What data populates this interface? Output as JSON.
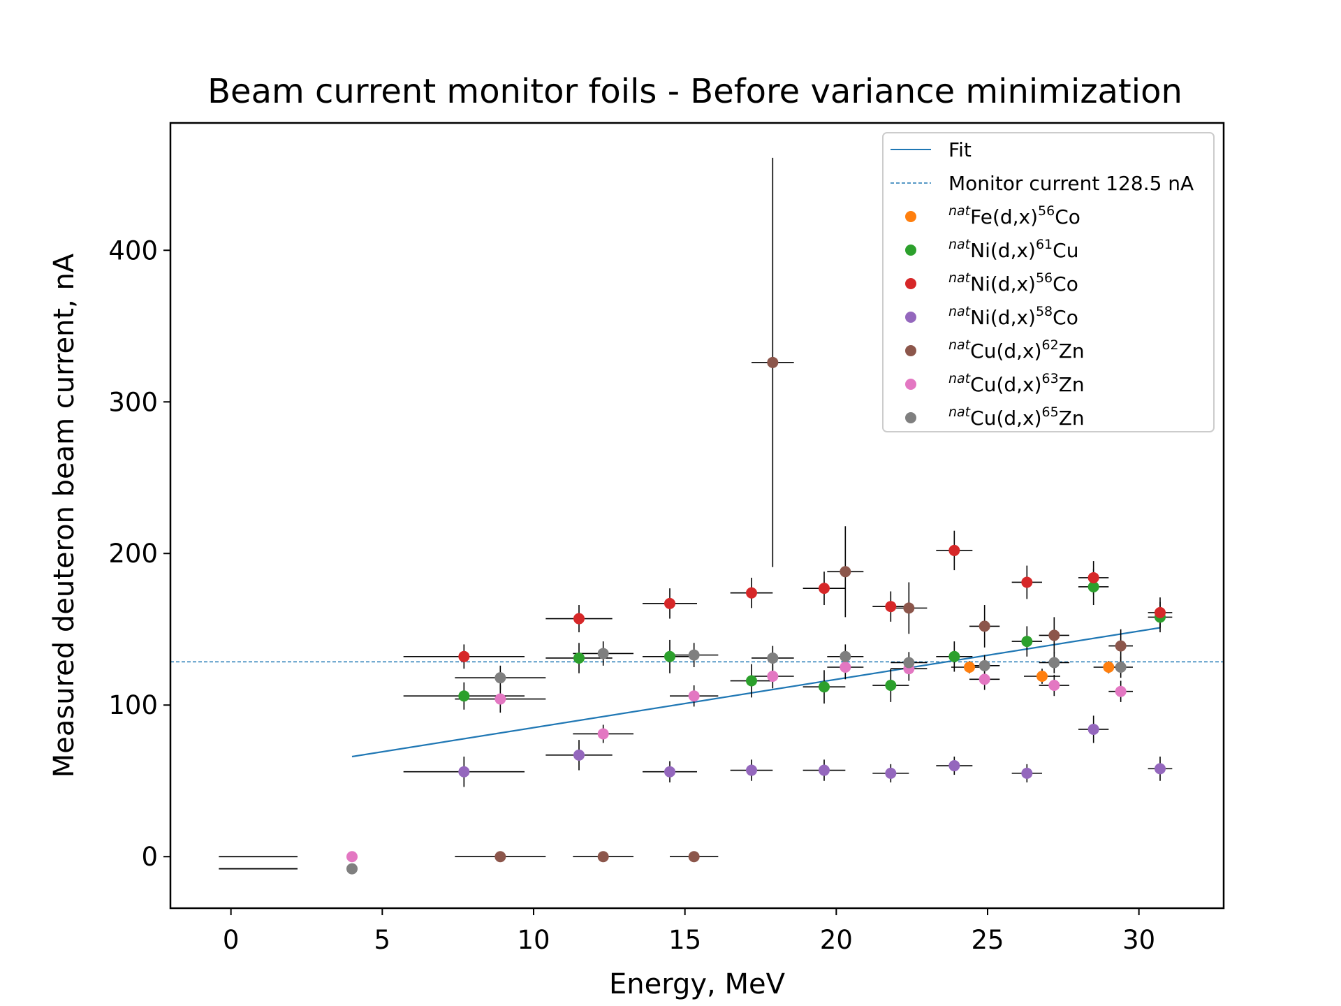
{
  "chart_data": {
    "type": "scatter",
    "title": "Beam current monitor foils - Before variance minimization",
    "xlabel": "Energy, MeV",
    "ylabel": "Measured deuteron beam current, nA",
    "xlim": [
      -2,
      32.8
    ],
    "ylim": [
      -34,
      484
    ],
    "xticks": [
      0,
      5,
      10,
      15,
      20,
      25,
      30
    ],
    "xtick_labels": [
      "0",
      "5",
      "10",
      "15",
      "20",
      "25",
      "30"
    ],
    "yticks": [
      0,
      100,
      200,
      300,
      400
    ],
    "ytick_labels": [
      "0",
      "100",
      "200",
      "300",
      "400"
    ],
    "grid": false,
    "legend_position": "top-right",
    "legend": [
      {
        "kind": "line",
        "label": "Fit",
        "color": "#1f77b4"
      },
      {
        "kind": "dashed",
        "label": "Monitor current 128.5 nA",
        "color": "#1f77b4"
      },
      {
        "kind": "marker",
        "pre": "nat",
        "mid": "Fe(d,x)",
        "sup": "56",
        "post": "Co",
        "color": "#ff7f0e"
      },
      {
        "kind": "marker",
        "pre": "nat",
        "mid": "Ni(d,x)",
        "sup": "61",
        "post": "Cu",
        "color": "#2ca02c"
      },
      {
        "kind": "marker",
        "pre": "nat",
        "mid": "Ni(d,x)",
        "sup": "56",
        "post": "Co",
        "color": "#d62728"
      },
      {
        "kind": "marker",
        "pre": "nat",
        "mid": "Ni(d,x)",
        "sup": "58",
        "post": "Co",
        "color": "#9467bd"
      },
      {
        "kind": "marker",
        "pre": "nat",
        "mid": "Cu(d,x)",
        "sup": "62",
        "post": "Zn",
        "color": "#8c564b"
      },
      {
        "kind": "marker",
        "pre": "nat",
        "mid": "Cu(d,x)",
        "sup": "63",
        "post": "Zn",
        "color": "#e377c2"
      },
      {
        "kind": "marker",
        "pre": "nat",
        "mid": "Cu(d,x)",
        "sup": "65",
        "post": "Zn",
        "color": "#7f7f7f"
      }
    ],
    "fit": {
      "x": [
        4.0,
        30.7
      ],
      "y": [
        66,
        151
      ],
      "color": "#1f77b4"
    },
    "monitor_current": {
      "y": 128.5,
      "color": "#1f77b4"
    },
    "errorbar_color": "#000000",
    "orphan_bars": [
      {
        "y": 0,
        "x0": -0.4,
        "x1": 2.2
      },
      {
        "y": -8,
        "x0": -0.4,
        "x1": 2.2
      }
    ],
    "series": [
      {
        "name": "natFe(d,x)56Co",
        "color": "#ff7f0e",
        "points": [
          {
            "x": 24.4,
            "y": 125,
            "xerr": 0.6,
            "yerr": 4
          },
          {
            "x": 26.8,
            "y": 119,
            "xerr": 0.6,
            "yerr": 5
          },
          {
            "x": 29.0,
            "y": 125,
            "xerr": 0.5,
            "yerr": 4
          }
        ]
      },
      {
        "name": "natNi(d,x)61Cu",
        "color": "#2ca02c",
        "points": [
          {
            "x": 7.7,
            "y": 106,
            "xerr": 2.0,
            "yerr": 9
          },
          {
            "x": 11.5,
            "y": 131,
            "xerr": 1.1,
            "yerr": 10
          },
          {
            "x": 14.5,
            "y": 132,
            "xerr": 0.9,
            "yerr": 11
          },
          {
            "x": 17.2,
            "y": 116,
            "xerr": 0.7,
            "yerr": 11
          },
          {
            "x": 19.6,
            "y": 112,
            "xerr": 0.7,
            "yerr": 11
          },
          {
            "x": 21.8,
            "y": 113,
            "xerr": 0.6,
            "yerr": 11
          },
          {
            "x": 23.9,
            "y": 132,
            "xerr": 0.6,
            "yerr": 10
          },
          {
            "x": 26.3,
            "y": 142,
            "xerr": 0.5,
            "yerr": 10
          },
          {
            "x": 28.5,
            "y": 178,
            "xerr": 0.5,
            "yerr": 12
          },
          {
            "x": 30.7,
            "y": 158,
            "xerr": 0.4,
            "yerr": 10
          }
        ]
      },
      {
        "name": "natNi(d,x)56Co",
        "color": "#d62728",
        "points": [
          {
            "x": 7.7,
            "y": 132,
            "xerr": 2.0,
            "yerr": 8
          },
          {
            "x": 11.5,
            "y": 157,
            "xerr": 1.1,
            "yerr": 9
          },
          {
            "x": 14.5,
            "y": 167,
            "xerr": 0.9,
            "yerr": 10
          },
          {
            "x": 17.2,
            "y": 174,
            "xerr": 0.7,
            "yerr": 10
          },
          {
            "x": 19.6,
            "y": 177,
            "xerr": 0.7,
            "yerr": 11
          },
          {
            "x": 21.8,
            "y": 165,
            "xerr": 0.6,
            "yerr": 10
          },
          {
            "x": 23.9,
            "y": 202,
            "xerr": 0.6,
            "yerr": 13
          },
          {
            "x": 26.3,
            "y": 181,
            "xerr": 0.5,
            "yerr": 11
          },
          {
            "x": 28.5,
            "y": 184,
            "xerr": 0.5,
            "yerr": 11
          },
          {
            "x": 30.7,
            "y": 161,
            "xerr": 0.4,
            "yerr": 10
          }
        ]
      },
      {
        "name": "natNi(d,x)58Co",
        "color": "#9467bd",
        "points": [
          {
            "x": 7.7,
            "y": 56,
            "xerr": 2.0,
            "yerr": 10
          },
          {
            "x": 11.5,
            "y": 67,
            "xerr": 1.1,
            "yerr": 10
          },
          {
            "x": 14.5,
            "y": 56,
            "xerr": 0.9,
            "yerr": 7
          },
          {
            "x": 17.2,
            "y": 57,
            "xerr": 0.7,
            "yerr": 7
          },
          {
            "x": 19.6,
            "y": 57,
            "xerr": 0.7,
            "yerr": 7
          },
          {
            "x": 21.8,
            "y": 55,
            "xerr": 0.6,
            "yerr": 6
          },
          {
            "x": 23.9,
            "y": 60,
            "xerr": 0.6,
            "yerr": 6
          },
          {
            "x": 26.3,
            "y": 55,
            "xerr": 0.5,
            "yerr": 6
          },
          {
            "x": 28.5,
            "y": 84,
            "xerr": 0.5,
            "yerr": 9
          },
          {
            "x": 30.7,
            "y": 58,
            "xerr": 0.4,
            "yerr": 8
          }
        ]
      },
      {
        "name": "natCu(d,x)62Zn",
        "color": "#8c564b",
        "points": [
          {
            "x": 8.9,
            "y": 0,
            "xerr": 1.5,
            "yerr": 0
          },
          {
            "x": 12.3,
            "y": 0,
            "xerr": 1.0,
            "yerr": 0
          },
          {
            "x": 15.3,
            "y": 0,
            "xerr": 0.8,
            "yerr": 0
          },
          {
            "x": 17.9,
            "y": 326,
            "xerr": 0.7,
            "yerr": 135
          },
          {
            "x": 20.3,
            "y": 188,
            "xerr": 0.6,
            "yerr": 30
          },
          {
            "x": 22.4,
            "y": 164,
            "xerr": 0.6,
            "yerr": 17
          },
          {
            "x": 24.9,
            "y": 152,
            "xerr": 0.5,
            "yerr": 14
          },
          {
            "x": 27.2,
            "y": 146,
            "xerr": 0.5,
            "yerr": 12
          },
          {
            "x": 29.4,
            "y": 139,
            "xerr": 0.4,
            "yerr": 11
          }
        ]
      },
      {
        "name": "natCu(d,x)63Zn",
        "color": "#e377c2",
        "points": [
          {
            "x": 4.0,
            "y": 0,
            "xerr": 0,
            "yerr": 0
          },
          {
            "x": 8.9,
            "y": 104,
            "xerr": 1.5,
            "yerr": 9
          },
          {
            "x": 12.3,
            "y": 81,
            "xerr": 1.0,
            "yerr": 6
          },
          {
            "x": 15.3,
            "y": 106,
            "xerr": 0.8,
            "yerr": 7
          },
          {
            "x": 17.9,
            "y": 119,
            "xerr": 0.7,
            "yerr": 8
          },
          {
            "x": 20.3,
            "y": 125,
            "xerr": 0.6,
            "yerr": 8
          },
          {
            "x": 22.4,
            "y": 124,
            "xerr": 0.6,
            "yerr": 8
          },
          {
            "x": 24.9,
            "y": 117,
            "xerr": 0.5,
            "yerr": 7
          },
          {
            "x": 27.2,
            "y": 113,
            "xerr": 0.5,
            "yerr": 7
          },
          {
            "x": 29.4,
            "y": 109,
            "xerr": 0.4,
            "yerr": 7
          }
        ]
      },
      {
        "name": "natCu(d,x)65Zn",
        "color": "#7f7f7f",
        "points": [
          {
            "x": 4.0,
            "y": -8,
            "xerr": 0,
            "yerr": 0
          },
          {
            "x": 8.9,
            "y": 118,
            "xerr": 1.5,
            "yerr": 8
          },
          {
            "x": 12.3,
            "y": 134,
            "xerr": 1.0,
            "yerr": 8
          },
          {
            "x": 15.3,
            "y": 133,
            "xerr": 0.8,
            "yerr": 8
          },
          {
            "x": 17.9,
            "y": 131,
            "xerr": 0.7,
            "yerr": 8
          },
          {
            "x": 20.3,
            "y": 132,
            "xerr": 0.6,
            "yerr": 8
          },
          {
            "x": 22.4,
            "y": 128,
            "xerr": 0.6,
            "yerr": 7
          },
          {
            "x": 24.9,
            "y": 126,
            "xerr": 0.5,
            "yerr": 7
          },
          {
            "x": 27.2,
            "y": 128,
            "xerr": 0.5,
            "yerr": 7
          },
          {
            "x": 29.4,
            "y": 125,
            "xerr": 0.4,
            "yerr": 7
          }
        ]
      }
    ]
  }
}
